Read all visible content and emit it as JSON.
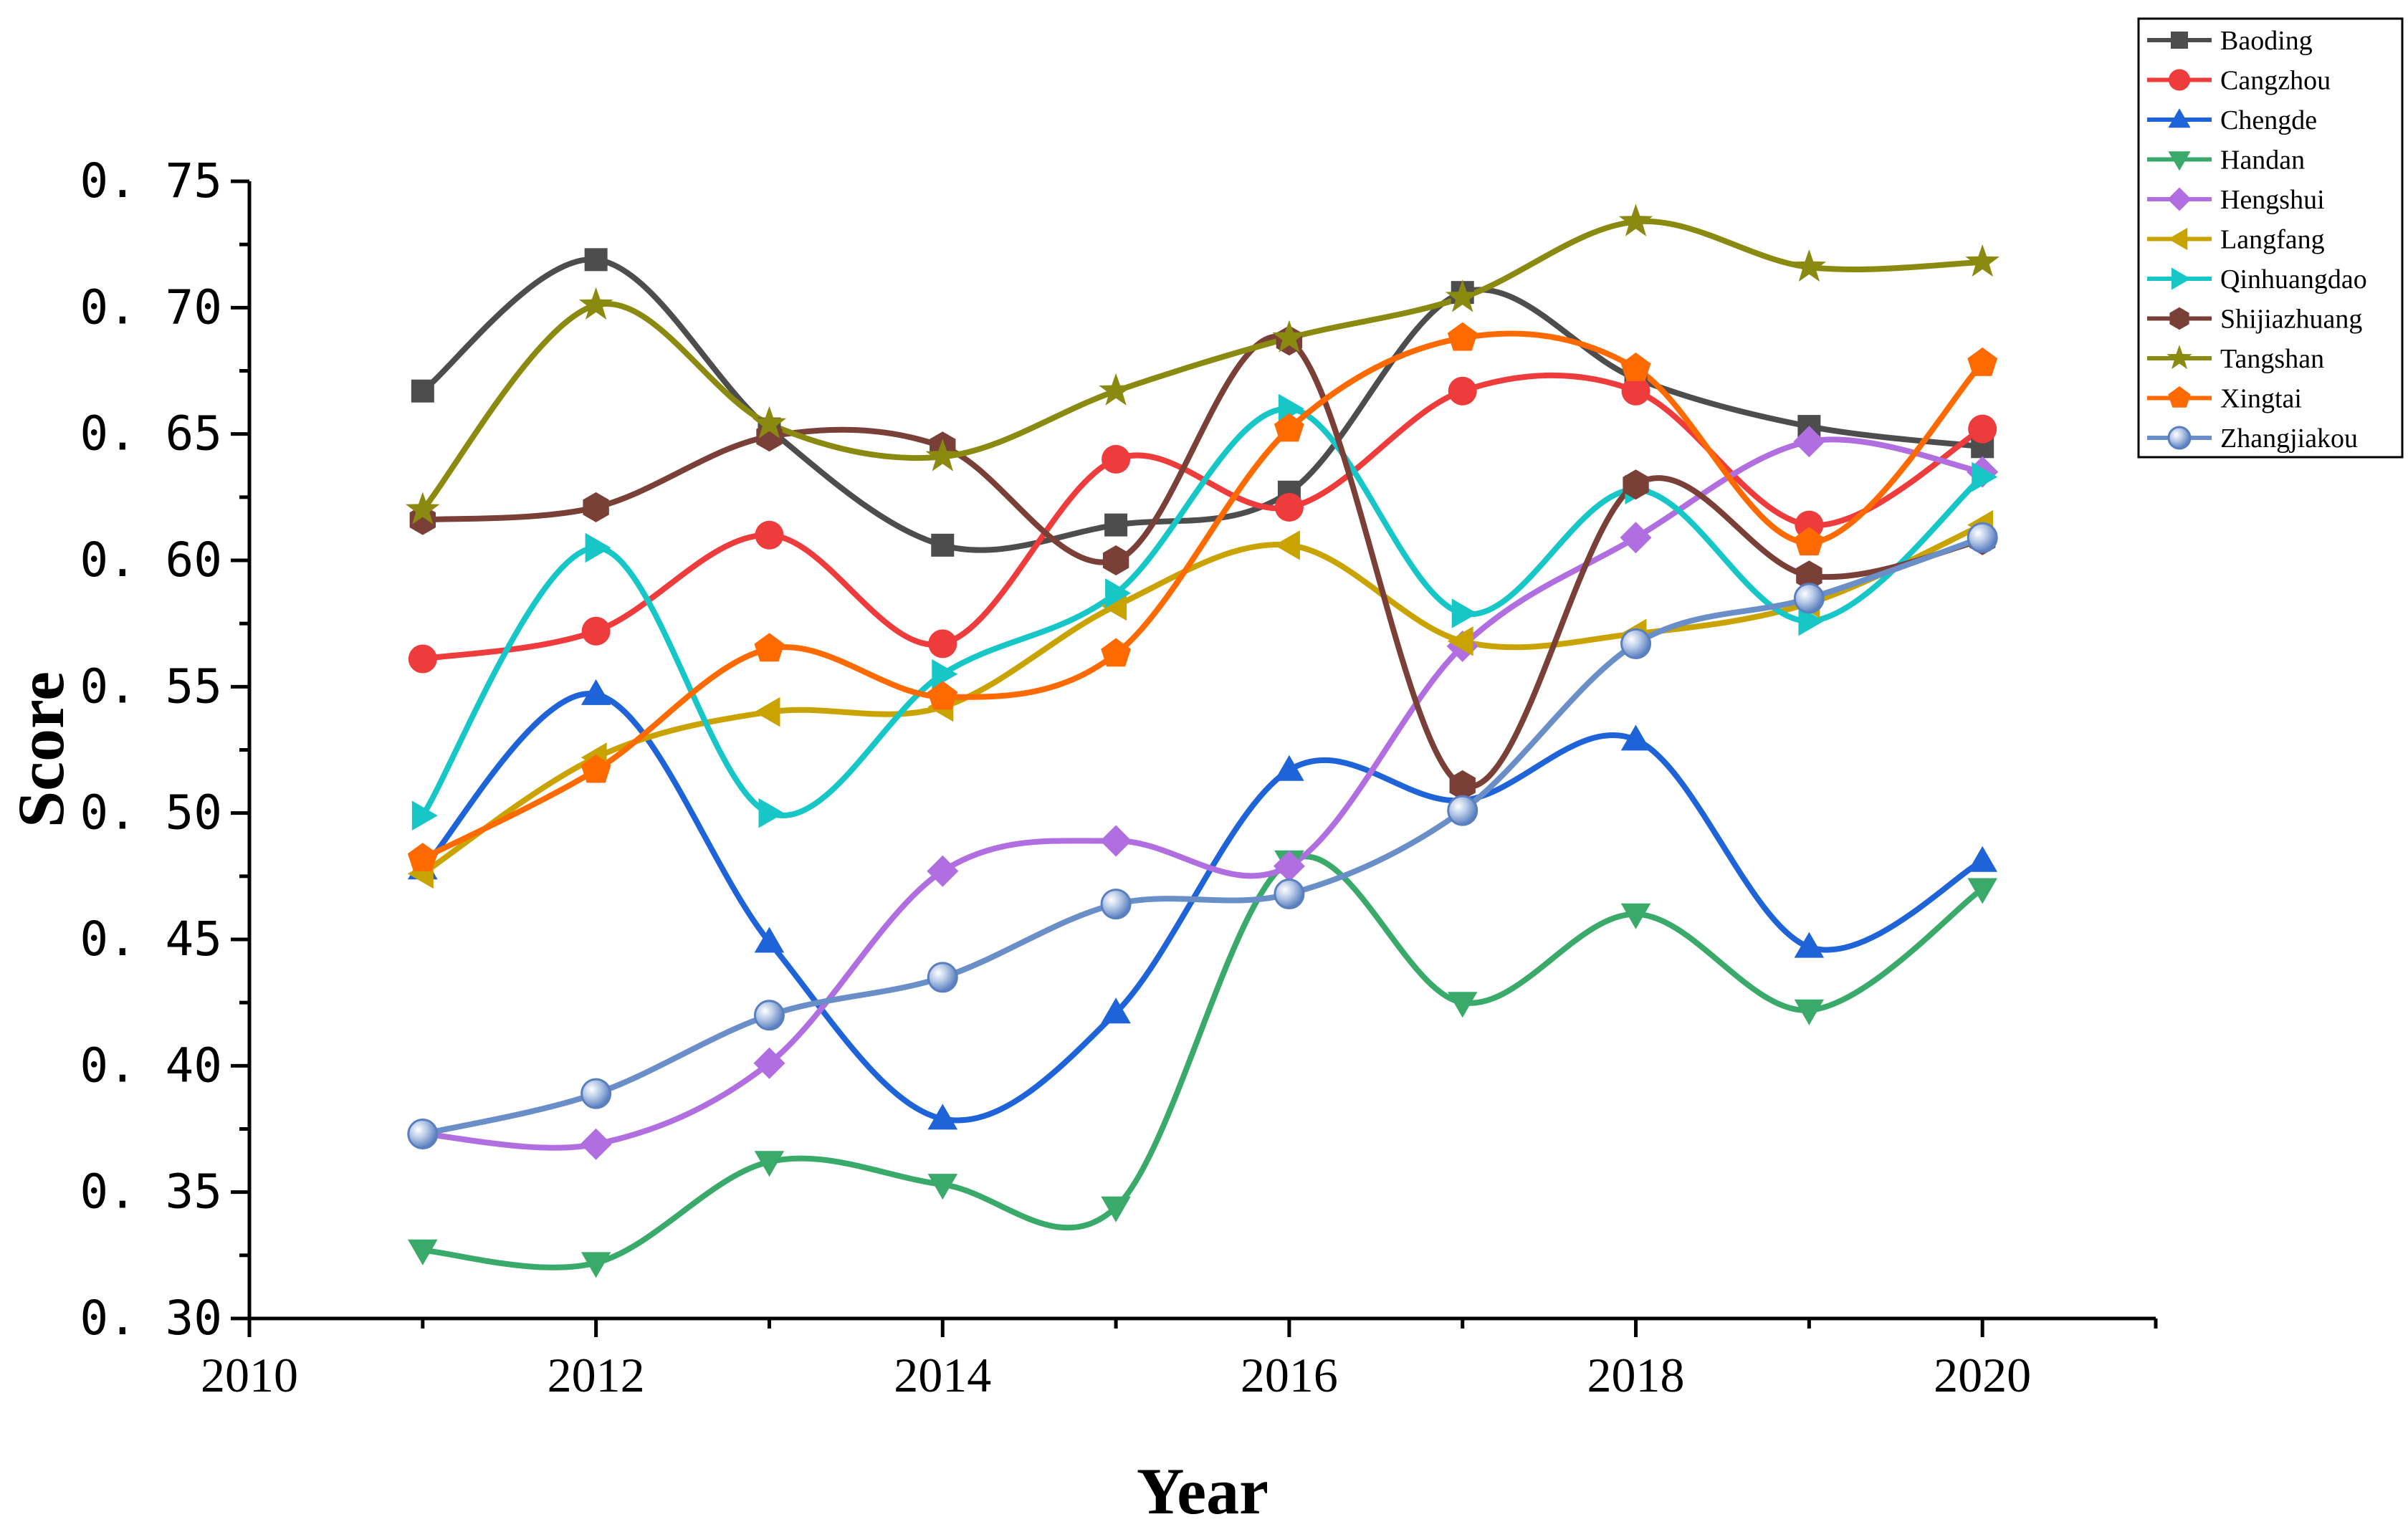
{
  "chart_data": {
    "type": "line",
    "xlabel": "Year",
    "ylabel": "Score",
    "xlim": [
      2010,
      2021
    ],
    "ylim": [
      0.3,
      0.75
    ],
    "x_ticks": [
      "2010",
      "2012",
      "2014",
      "2016",
      "2018",
      "2020"
    ],
    "y_ticks": [
      "0.30",
      "0.35",
      "0.40",
      "0.45",
      "0.50",
      "0.55",
      "0.60",
      "0.65",
      "0.70",
      "0.75"
    ],
    "legend_position": "top-right",
    "grid": false,
    "x": [
      2011,
      2012,
      2013,
      2014,
      2015,
      2016,
      2017,
      2018,
      2019,
      2020
    ],
    "series": [
      {
        "name": "Baoding",
        "color": "#4d4d4d",
        "marker": "square",
        "values": [
          0.667,
          0.719,
          0.652,
          0.606,
          0.614,
          0.627,
          0.706,
          0.672,
          0.653,
          0.645
        ]
      },
      {
        "name": "Cangzhou",
        "color": "#ee3b3b",
        "marker": "circle",
        "values": [
          0.561,
          0.572,
          0.61,
          0.567,
          0.64,
          0.621,
          0.667,
          0.667,
          0.614,
          0.652
        ]
      },
      {
        "name": "Chengde",
        "color": "#1e63d8",
        "marker": "triangle-up",
        "values": [
          0.478,
          0.547,
          0.449,
          0.379,
          0.421,
          0.517,
          0.505,
          0.529,
          0.447,
          0.481
        ]
      },
      {
        "name": "Handan",
        "color": "#3aaa6b",
        "marker": "triangle-down",
        "values": [
          0.327,
          0.322,
          0.362,
          0.353,
          0.344,
          0.481,
          0.425,
          0.46,
          0.422,
          0.47
        ]
      },
      {
        "name": "Hengshui",
        "color": "#b06ee0",
        "marker": "diamond",
        "values": [
          0.373,
          0.369,
          0.401,
          0.477,
          0.489,
          0.479,
          0.566,
          0.609,
          0.647,
          0.635
        ]
      },
      {
        "name": "Langfang",
        "color": "#c9a400",
        "marker": "triangle-left",
        "values": [
          0.476,
          0.522,
          0.54,
          0.542,
          0.582,
          0.606,
          0.568,
          0.571,
          0.583,
          0.614
        ]
      },
      {
        "name": "Qinhuangdao",
        "color": "#17c7c7",
        "marker": "triangle-right",
        "values": [
          0.499,
          0.605,
          0.5,
          0.555,
          0.587,
          0.66,
          0.579,
          0.628,
          0.576,
          0.633
        ]
      },
      {
        "name": "Shijiazhuang",
        "color": "#7a4038",
        "marker": "hexagon",
        "values": [
          0.616,
          0.621,
          0.649,
          0.645,
          0.6,
          0.687,
          0.511,
          0.63,
          0.594,
          0.608
        ]
      },
      {
        "name": "Tangshan",
        "color": "#8a8a10",
        "marker": "star",
        "values": [
          0.62,
          0.701,
          0.654,
          0.641,
          0.667,
          0.688,
          0.704,
          0.734,
          0.716,
          0.718
        ]
      },
      {
        "name": "Xingtai",
        "color": "#ff6a00",
        "marker": "pentagon",
        "values": [
          0.482,
          0.517,
          0.565,
          0.546,
          0.563,
          0.652,
          0.688,
          0.676,
          0.607,
          0.678
        ]
      },
      {
        "name": "Zhangjiakou",
        "color": "#6a8fc8",
        "marker": "ball",
        "values": [
          0.373,
          0.389,
          0.42,
          0.435,
          0.464,
          0.468,
          0.501,
          0.567,
          0.585,
          0.609
        ]
      }
    ]
  }
}
